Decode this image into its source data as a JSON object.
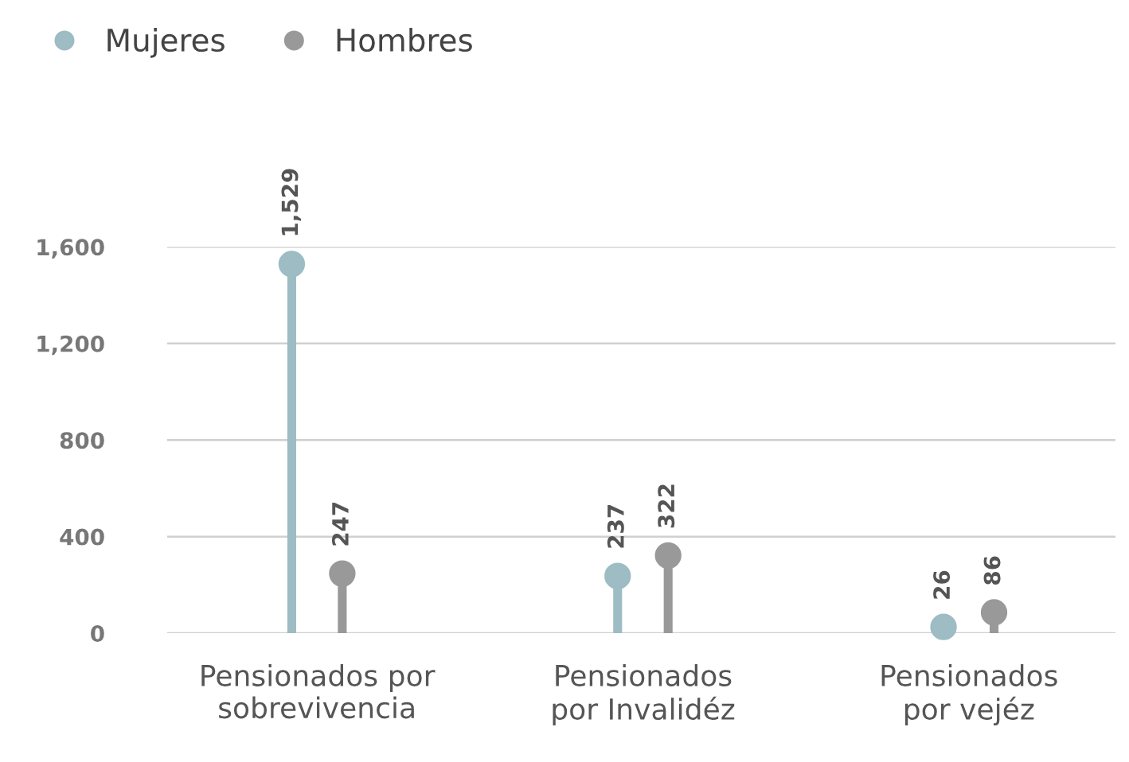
{
  "chart_data": {
    "type": "lollipop",
    "categories": [
      "Pensionados por\nsobrevivencia",
      "Pensionados\npor Invalidéz",
      "Pensionados\npor vejéz"
    ],
    "series": [
      {
        "name": "Mujeres",
        "color": "#9dbcc4",
        "values": [
          1529,
          237,
          26
        ],
        "value_labels": [
          "1,529",
          "237",
          "26"
        ]
      },
      {
        "name": "Hombres",
        "color": "#999999",
        "values": [
          247,
          322,
          86
        ],
        "value_labels": [
          "247",
          "322",
          "86"
        ]
      }
    ],
    "ylim": [
      0,
      1600
    ],
    "yticks": [
      0,
      {
        "value": 400,
        "label": "400"
      },
      {
        "value": 800,
        "label": "800"
      },
      {
        "value": 1200,
        "label": "1,200"
      },
      {
        "value": 1600,
        "label": "1,600"
      }
    ],
    "grid": "y",
    "legend": "top left",
    "marker": "circle"
  }
}
